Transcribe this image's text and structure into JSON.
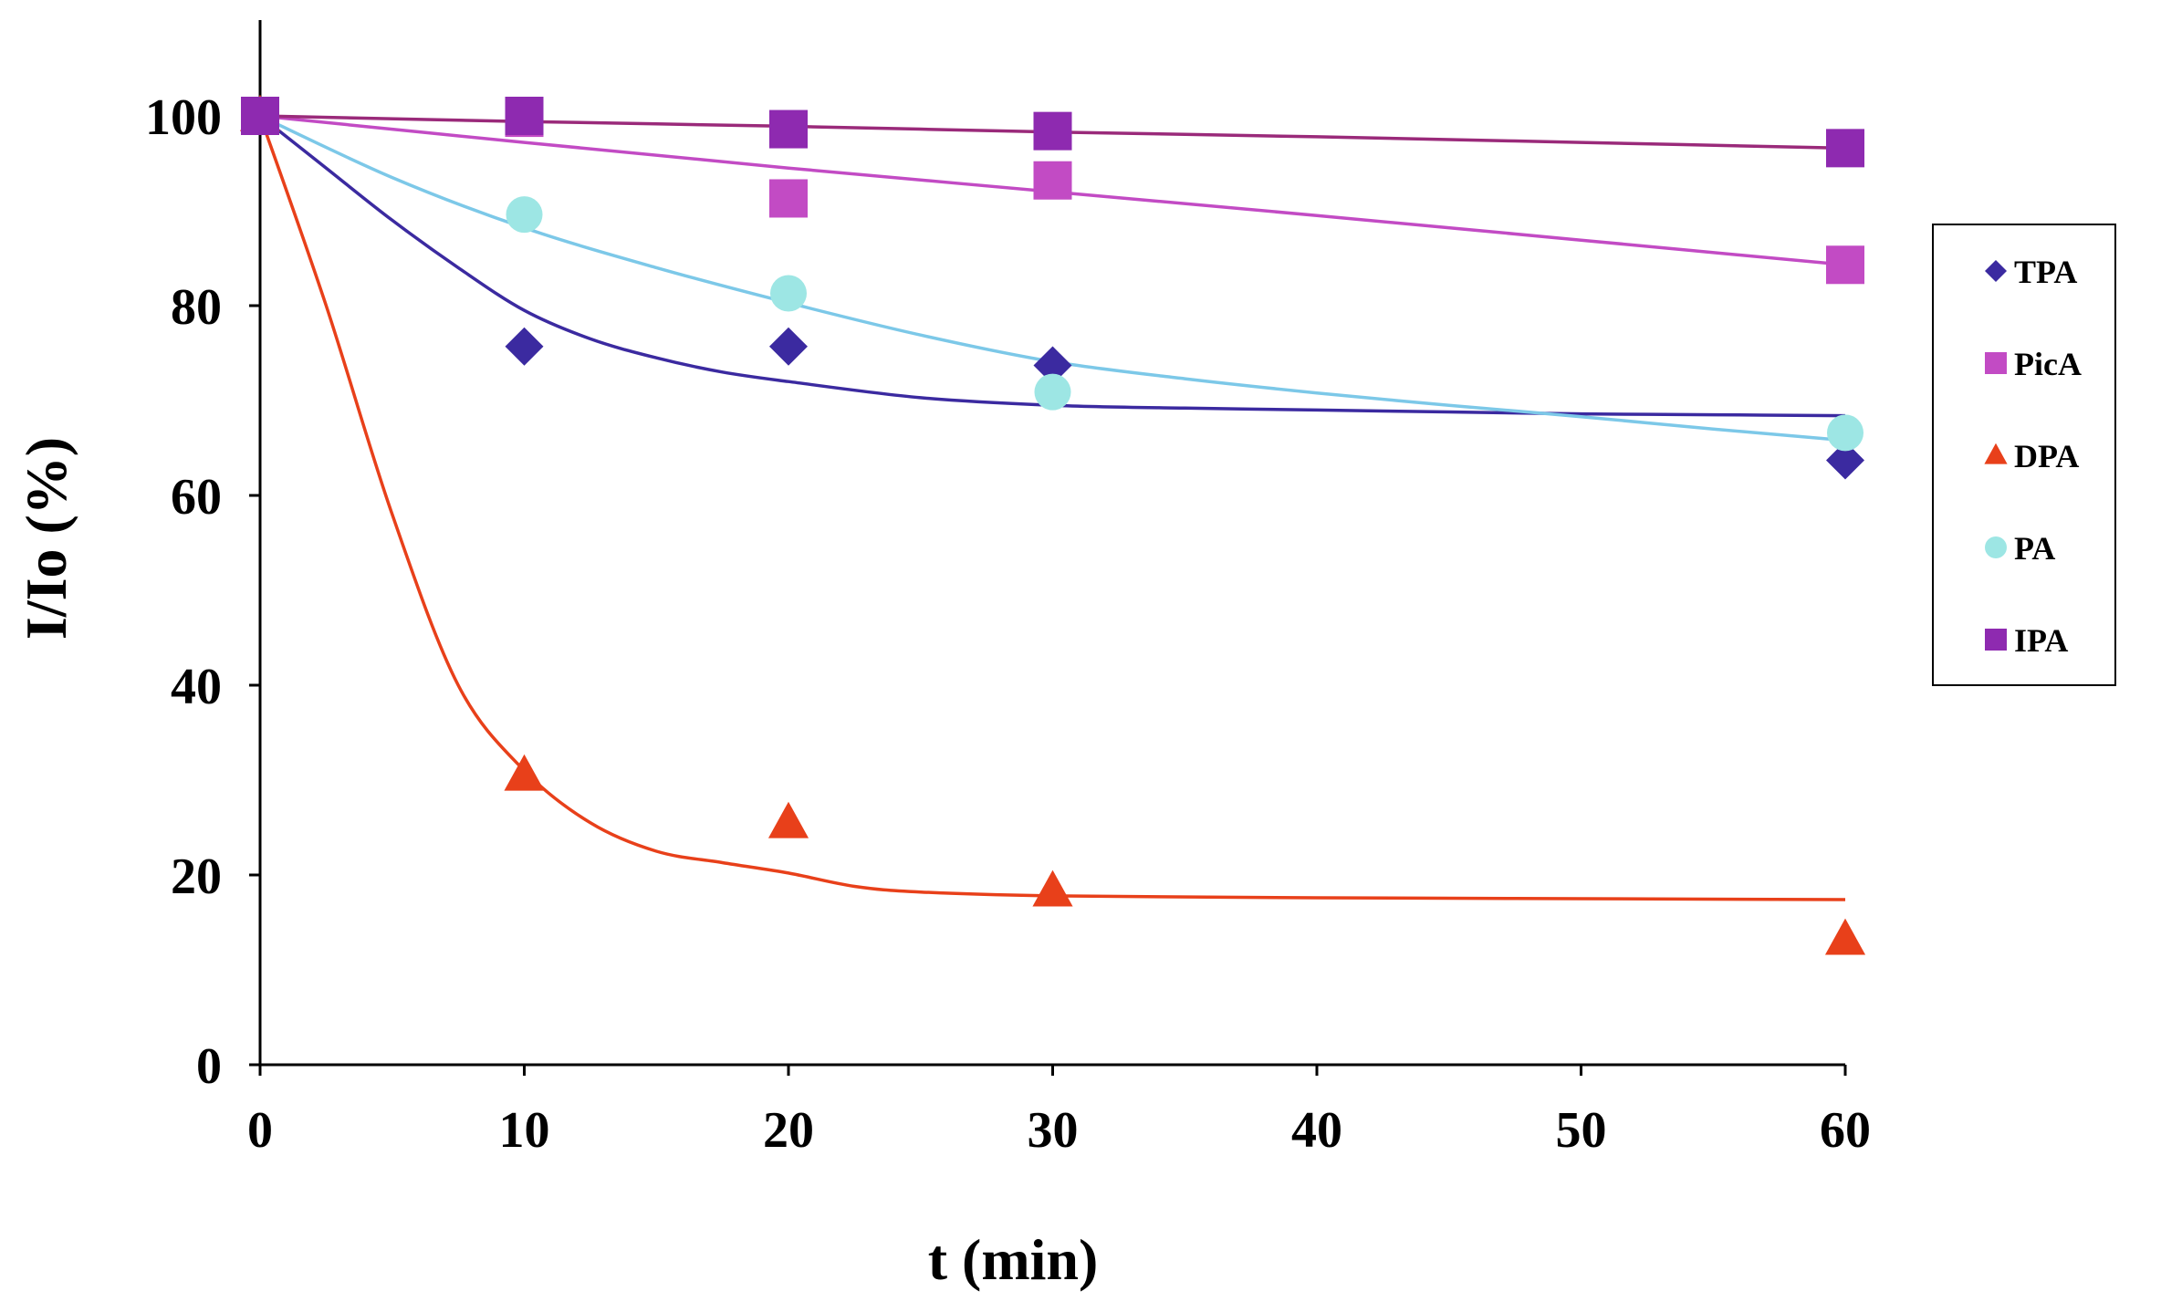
{
  "chart_data": {
    "type": "scatter",
    "title": "",
    "xlabel": "t (min)",
    "ylabel": "I/Io (%)",
    "xlim": [
      0,
      60
    ],
    "ylim": [
      0,
      110
    ],
    "x_ticks": [
      0,
      10,
      20,
      30,
      40,
      50,
      60
    ],
    "y_ticks": [
      0,
      20,
      40,
      60,
      80,
      100
    ],
    "grid": false,
    "legend_position": "right",
    "series": [
      {
        "name": "TPA",
        "marker": "diamond",
        "color": "#3b2aa0",
        "x": [
          0,
          10,
          20,
          30,
          60
        ],
        "values": [
          100,
          75.7,
          75.7,
          73.7,
          63.7
        ],
        "fit": {
          "color": "#3b2aa0",
          "x": [
            0,
            2.5,
            5,
            7.5,
            10,
            12.5,
            15,
            17.5,
            20,
            25,
            30,
            35,
            40,
            45,
            50,
            55,
            60
          ],
          "y": [
            100,
            94.5,
            89.0,
            84.0,
            79.5,
            76.5,
            74.5,
            73.0,
            72.0,
            70.3,
            69.5,
            69.2,
            69.0,
            68.8,
            68.6,
            68.5,
            68.4
          ]
        }
      },
      {
        "name": "PicA",
        "marker": "square",
        "color": "#c24bc4",
        "x": [
          0,
          10,
          20,
          30,
          60
        ],
        "values": [
          100,
          99.8,
          91.3,
          93.2,
          84.3
        ],
        "fit": {
          "color": "#c24bc4",
          "x": [
            0,
            10,
            20,
            30,
            40,
            50,
            60
          ],
          "y": [
            100,
            97.2,
            94.5,
            92.0,
            89.5,
            86.9,
            84.3
          ]
        }
      },
      {
        "name": "DPA",
        "marker": "triangle",
        "color": "#e8401a",
        "x": [
          0,
          10,
          20,
          30,
          60
        ],
        "values": [
          100,
          30.5,
          25.5,
          18.3,
          13.2
        ],
        "fit": {
          "color": "#e8401a",
          "x": [
            0,
            2.5,
            5,
            7.5,
            10,
            12.5,
            15,
            17.5,
            20,
            22.5,
            25,
            30,
            40,
            50,
            60
          ],
          "y": [
            100,
            80,
            58,
            40,
            31,
            25.5,
            22.5,
            21.3,
            20.2,
            18.8,
            18.2,
            17.8,
            17.6,
            17.5,
            17.4
          ]
        }
      },
      {
        "name": "PA",
        "marker": "circle",
        "color": "#9de6e4",
        "x": [
          0,
          10,
          20,
          30,
          60
        ],
        "values": [
          100,
          89.6,
          81.3,
          70.9,
          66.6
        ],
        "fit": {
          "color": "#7cc8e8",
          "x": [
            0,
            5,
            10,
            15,
            20,
            25,
            30,
            35,
            40,
            45,
            50,
            55,
            60
          ],
          "y": [
            100,
            93.5,
            88.2,
            84.0,
            80.3,
            76.9,
            74.1,
            72.3,
            70.8,
            69.5,
            68.3,
            67.0,
            65.8
          ]
        }
      },
      {
        "name": "IPA",
        "marker": "square",
        "color": "#8e2ab0",
        "x": [
          0,
          10,
          20,
          30,
          60
        ],
        "values": [
          100,
          100,
          98.6,
          98.4,
          96.6
        ],
        "fit": {
          "color": "#9a2a7a",
          "x": [
            0,
            10,
            20,
            30,
            40,
            50,
            60
          ],
          "y": [
            100,
            99.4,
            98.9,
            98.3,
            97.8,
            97.2,
            96.6
          ]
        }
      }
    ]
  }
}
